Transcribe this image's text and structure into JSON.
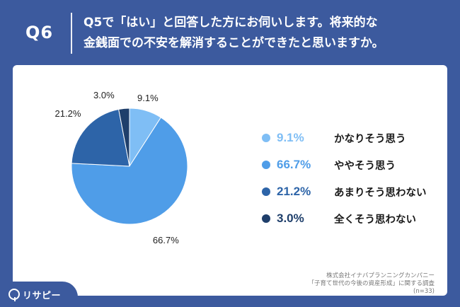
{
  "header": {
    "question_number": "Q6",
    "question_line1": "Q5で「はい」と回答した方にお伺いします。将来的な",
    "question_line2": "金銭面での不安を解消することができたと思いますか。"
  },
  "chart_data": {
    "type": "pie",
    "categories": [
      "かなりそう思う",
      "ややそう思う",
      "あまりそう思わない",
      "全くそう思わない"
    ],
    "values": [
      9.1,
      66.7,
      21.2,
      3.0
    ],
    "slice_labels": [
      "9.1%",
      "66.7%",
      "21.2%",
      "3.0%"
    ],
    "colors": [
      "#7fbef5",
      "#4f9de8",
      "#2d64a8",
      "#1f3f6b"
    ],
    "start": "12 o'clock",
    "direction": "clockwise",
    "legend_position": "right"
  },
  "legend": [
    {
      "pct": "9.1%",
      "label": "かなりそう思う",
      "color": "#7fbef5"
    },
    {
      "pct": "66.7%",
      "label": "ややそう思う",
      "color": "#4f9de8"
    },
    {
      "pct": "21.2%",
      "label": "あまりそう思わない",
      "color": "#2d64a8"
    },
    {
      "pct": "3.0%",
      "label": "全くそう思わない",
      "color": "#1f3f6b"
    }
  ],
  "footer": {
    "company": "株式会社イナバプランニングカンパニー",
    "survey": "「子育て世代の今後の資産形成」に関する調査",
    "sample": "(n=33)"
  },
  "brand": {
    "logo_icon": "search-pin-icon",
    "name": "リサピー"
  }
}
